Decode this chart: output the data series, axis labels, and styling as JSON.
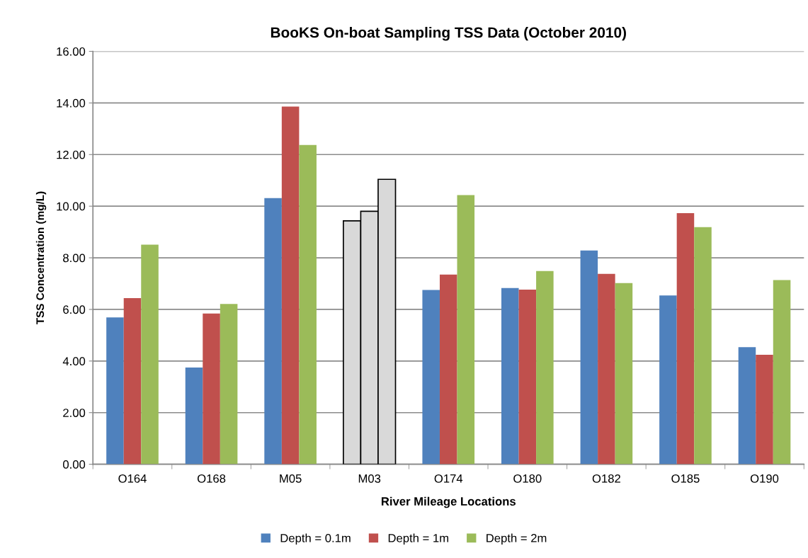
{
  "chart_data": {
    "type": "bar",
    "title": "BooKS On-boat Sampling TSS Data (October 2010)",
    "xlabel": "River Mileage Locations",
    "ylabel": "TSS Concentration (mg/L)",
    "categories": [
      "O164",
      "O168",
      "M05",
      "M03",
      "O174",
      "O180",
      "O182",
      "O185",
      "O190"
    ],
    "series": [
      {
        "name": "Depth = 0.1m",
        "color": "#4f81bd",
        "colors": [
          "#4f81bd",
          "#4f81bd",
          "#4f81bd",
          "#d9d9d9",
          "#4f81bd",
          "#4f81bd",
          "#4f81bd",
          "#4f81bd",
          "#4f81bd"
        ],
        "values": [
          5.69,
          3.75,
          10.31,
          9.43,
          6.75,
          6.83,
          8.28,
          6.54,
          4.54
        ]
      },
      {
        "name": "Depth = 1m",
        "color": "#c0504d",
        "colors": [
          "#c0504d",
          "#c0504d",
          "#c0504d",
          "#d9d9d9",
          "#c0504d",
          "#c0504d",
          "#c0504d",
          "#c0504d",
          "#c0504d"
        ],
        "values": [
          6.44,
          5.84,
          13.86,
          9.8,
          7.35,
          6.77,
          7.38,
          9.73,
          4.24
        ]
      },
      {
        "name": "Depth = 2m",
        "color": "#9bbb59",
        "colors": [
          "#9bbb59",
          "#9bbb59",
          "#9bbb59",
          "#d9d9d9",
          "#9bbb59",
          "#9bbb59",
          "#9bbb59",
          "#9bbb59",
          "#9bbb59"
        ],
        "values": [
          8.51,
          6.21,
          12.37,
          11.04,
          10.43,
          7.49,
          7.02,
          9.19,
          7.14
        ]
      }
    ],
    "ylim": [
      0,
      16
    ],
    "yticks": [
      {
        "value": 0,
        "label": "0.00"
      },
      {
        "value": 2,
        "label": "2.00"
      },
      {
        "value": 4,
        "label": "4.00"
      },
      {
        "value": 6,
        "label": "6.00"
      },
      {
        "value": 8,
        "label": "8.00"
      },
      {
        "value": 10,
        "label": "10.00"
      },
      {
        "value": 12,
        "label": "12.00"
      },
      {
        "value": 14,
        "label": "14.00"
      },
      {
        "value": 16,
        "label": "16.00"
      }
    ],
    "grid": "y",
    "legend": "bottom"
  }
}
